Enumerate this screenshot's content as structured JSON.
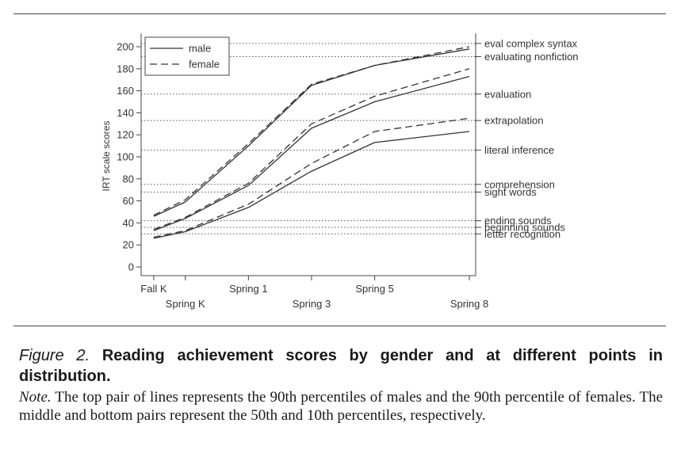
{
  "chart_data": {
    "type": "line",
    "ylabel": "IRT scale scores",
    "xlabel": "",
    "ylim": [
      0,
      210
    ],
    "y_ticks": [
      0,
      20,
      40,
      60,
      80,
      100,
      120,
      140,
      160,
      180,
      200
    ],
    "x_ticks": [
      {
        "label": "Fall K",
        "x": 0,
        "row": 1
      },
      {
        "label": "Spring K",
        "x": 1,
        "row": 2
      },
      {
        "label": "Spring 1",
        "x": 3,
        "row": 1
      },
      {
        "label": "Spring 3",
        "x": 5,
        "row": 2
      },
      {
        "label": "Spring 5",
        "x": 7,
        "row": 1
      },
      {
        "label": "Spring 8",
        "x": 10,
        "row": 2
      }
    ],
    "xlim": [
      -0.4,
      10.2
    ],
    "x": [
      0,
      1,
      3,
      5,
      7,
      10
    ],
    "legend": {
      "position": "top-left",
      "entries": [
        {
          "label": "male",
          "style": "solid"
        },
        {
          "label": "female",
          "style": "dashed"
        }
      ]
    },
    "series": [
      {
        "gender": "male",
        "style": "solid",
        "values": [
          46,
          59,
          110,
          165,
          183,
          198
        ]
      },
      {
        "gender": "female",
        "style": "dashed",
        "values": [
          47,
          61,
          112,
          166,
          183,
          200
        ]
      },
      {
        "gender": "male",
        "style": "solid",
        "values": [
          33,
          44,
          74,
          126,
          150,
          173
        ]
      },
      {
        "gender": "female",
        "style": "dashed",
        "values": [
          34,
          45,
          76,
          130,
          155,
          180
        ]
      },
      {
        "gender": "male",
        "style": "solid",
        "values": [
          26,
          32,
          54,
          87,
          113,
          123
        ]
      },
      {
        "gender": "female",
        "style": "dashed",
        "values": [
          27,
          33,
          57,
          94,
          123,
          135
        ]
      }
    ],
    "reference_lines": [
      {
        "label": "eval complex syntax",
        "y": 203
      },
      {
        "label": "evaluating nonfiction",
        "y": 191
      },
      {
        "label": "evaluation",
        "y": 157
      },
      {
        "label": "extrapolation",
        "y": 133
      },
      {
        "label": "literal inference",
        "y": 106
      },
      {
        "label": "comprehension",
        "y": 75
      },
      {
        "label": "sight words",
        "y": 68
      },
      {
        "label": "ending sounds",
        "y": 42
      },
      {
        "label": "beginning sounds",
        "y": 36
      },
      {
        "label": "letter recognition",
        "y": 30
      }
    ]
  },
  "caption": {
    "figure_label": "Figure 2.",
    "title": "Reading achievement scores by gender and at different points in distribution.",
    "note_label": "Note.",
    "note_text": "The top pair of lines represents the 90th percentiles of males and the 90th percentile of females. The middle and bottom pairs represent the 50th and 10th percentiles, respectively."
  }
}
